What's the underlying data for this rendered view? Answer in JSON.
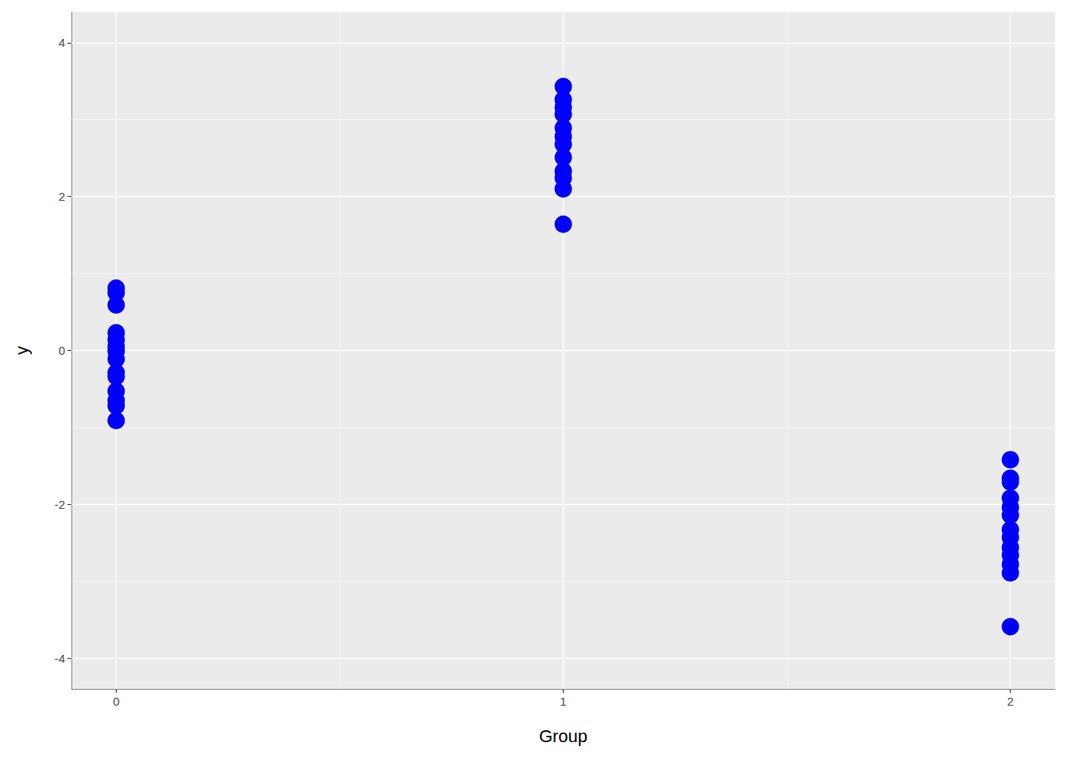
{
  "chart_data": {
    "type": "scatter",
    "x_label": "Group",
    "y_label": "y",
    "x": [
      0,
      0,
      0,
      0,
      0,
      0,
      0,
      0,
      0,
      0,
      0,
      0,
      0,
      0,
      1,
      1,
      1,
      1,
      1,
      1,
      1,
      1,
      1,
      1,
      1,
      1,
      2,
      2,
      2,
      2,
      2,
      2,
      2,
      2,
      2,
      2,
      2,
      2,
      2
    ],
    "values": [
      0.81,
      0.75,
      0.59,
      0.23,
      0.14,
      0.05,
      -0.01,
      -0.11,
      -0.29,
      -0.34,
      -0.53,
      -0.65,
      -0.72,
      -0.91,
      3.43,
      3.26,
      3.16,
      3.07,
      2.89,
      2.78,
      2.68,
      2.51,
      2.33,
      2.24,
      2.1,
      1.64,
      -1.42,
      -1.66,
      -1.71,
      -1.92,
      -2.04,
      -2.14,
      -2.33,
      -2.43,
      -2.56,
      -2.66,
      -2.78,
      -2.89,
      -3.59
    ],
    "color": "#0000ff",
    "marker": "circle",
    "xlim": [
      -0.1,
      2.1
    ],
    "xticks": [
      0,
      1,
      2
    ],
    "ylim": [
      -4.4,
      4.4
    ],
    "yticks": [
      -4,
      -2,
      0,
      2,
      4
    ],
    "grid": true
  }
}
